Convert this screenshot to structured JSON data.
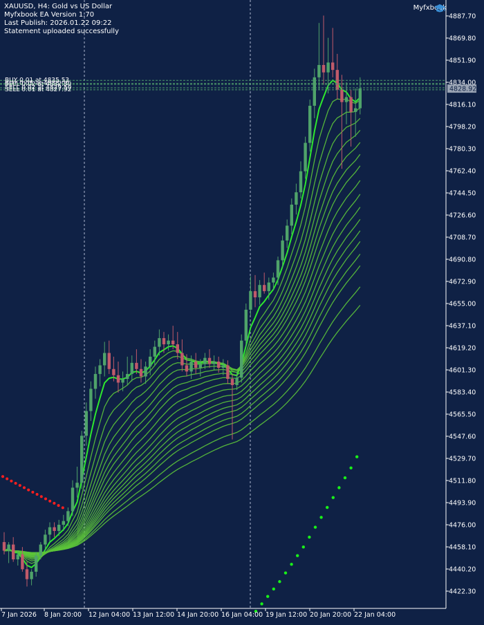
{
  "header": {
    "symbol_line": "XAUUSD, H4:  Gold vs US Dollar",
    "ea_line": "Myfxbook EA Version 1.70",
    "publish_line": "Last Publish: 2026.01.22 09:22",
    "status_line": "Statement uploaded successfully"
  },
  "brand": {
    "name": "Myfxbook",
    "icon": "graduation-cap-icon"
  },
  "colors": {
    "background": "#0f2145",
    "bull_candle": "#4fa36a",
    "bear_candle": "#c05a6a",
    "ema_fast": "#2ee82e",
    "ema_ribbon": "#5cc43a",
    "psar_up": "#19f019",
    "psar_down": "#ff1f1f",
    "trade_lines": "#4d9a6a",
    "axis_text": "#ffffff"
  },
  "chart_data": {
    "type": "candlestick",
    "timeframe": "H4",
    "current_price": "4828.92",
    "ylim": [
      4404.3,
      4896.1
    ],
    "y_ticks": [
      "4887.70",
      "4869.80",
      "4851.90",
      "4834.00",
      "4816.10",
      "4798.20",
      "4780.30",
      "4762.40",
      "4744.50",
      "4726.60",
      "4708.70",
      "4690.80",
      "4672.90",
      "4655.00",
      "4637.10",
      "4619.20",
      "4601.30",
      "4583.40",
      "4565.50",
      "4547.60",
      "4529.70",
      "4511.80",
      "4493.90",
      "4476.00",
      "4458.10",
      "4440.20",
      "4422.30"
    ],
    "x_ticks": [
      "7 Jan 2026",
      "8 Jan 20:00",
      "12 Jan 04:00",
      "13 Jan 12:00",
      "14 Jan 20:00",
      "16 Jan 04:00",
      "19 Jan 12:00",
      "20 Jan 20:00",
      "22 Jan 04:00"
    ],
    "period_separators": [
      "8 Jan 20:00",
      "16 Jan 04:00"
    ],
    "trade_labels": [
      {
        "text": "BUY 0.01 at 4835.53",
        "price": 4835.53
      },
      {
        "text": "BUY 0.05 at 4833.00",
        "price": 4833.0
      },
      {
        "text": "SELL 0.02 at 4832.30",
        "price": 4832.3
      },
      {
        "text": "SELL 0.02 at 4829.50",
        "price": 4829.5
      },
      {
        "text": "SELL 0.01 at 4827.92",
        "price": 4827.92
      }
    ],
    "candles": [
      {
        "o": 4462,
        "h": 4470,
        "l": 4452,
        "c": 4455
      },
      {
        "o": 4455,
        "h": 4462,
        "l": 4445,
        "c": 4460
      },
      {
        "o": 4460,
        "h": 4466,
        "l": 4446,
        "c": 4448
      },
      {
        "o": 4448,
        "h": 4455,
        "l": 4443,
        "c": 4452
      },
      {
        "o": 4452,
        "h": 4458,
        "l": 4438,
        "c": 4440
      },
      {
        "o": 4440,
        "h": 4446,
        "l": 4426,
        "c": 4432
      },
      {
        "o": 4432,
        "h": 4440,
        "l": 4427,
        "c": 4438
      },
      {
        "o": 4438,
        "h": 4454,
        "l": 4434,
        "c": 4451
      },
      {
        "o": 4451,
        "h": 4462,
        "l": 4448,
        "c": 4460
      },
      {
        "o": 4460,
        "h": 4472,
        "l": 4455,
        "c": 4468
      },
      {
        "o": 4468,
        "h": 4478,
        "l": 4462,
        "c": 4474
      },
      {
        "o": 4474,
        "h": 4478,
        "l": 4466,
        "c": 4471
      },
      {
        "o": 4471,
        "h": 4480,
        "l": 4467,
        "c": 4476
      },
      {
        "o": 4476,
        "h": 4484,
        "l": 4471,
        "c": 4479
      },
      {
        "o": 4479,
        "h": 4490,
        "l": 4475,
        "c": 4487
      },
      {
        "o": 4487,
        "h": 4512,
        "l": 4483,
        "c": 4506
      },
      {
        "o": 4506,
        "h": 4523,
        "l": 4498,
        "c": 4510
      },
      {
        "o": 4510,
        "h": 4552,
        "l": 4505,
        "c": 4548
      },
      {
        "o": 4548,
        "h": 4575,
        "l": 4540,
        "c": 4568
      },
      {
        "o": 4568,
        "h": 4592,
        "l": 4560,
        "c": 4586
      },
      {
        "o": 4586,
        "h": 4604,
        "l": 4578,
        "c": 4598
      },
      {
        "o": 4598,
        "h": 4610,
        "l": 4588,
        "c": 4605
      },
      {
        "o": 4605,
        "h": 4624,
        "l": 4596,
        "c": 4615
      },
      {
        "o": 4615,
        "h": 4625,
        "l": 4598,
        "c": 4602
      },
      {
        "o": 4602,
        "h": 4612,
        "l": 4592,
        "c": 4597
      },
      {
        "o": 4597,
        "h": 4608,
        "l": 4583,
        "c": 4591
      },
      {
        "o": 4591,
        "h": 4600,
        "l": 4584,
        "c": 4594
      },
      {
        "o": 4594,
        "h": 4612,
        "l": 4589,
        "c": 4598
      },
      {
        "o": 4598,
        "h": 4613,
        "l": 4592,
        "c": 4607
      },
      {
        "o": 4607,
        "h": 4618,
        "l": 4598,
        "c": 4602
      },
      {
        "o": 4602,
        "h": 4610,
        "l": 4591,
        "c": 4596
      },
      {
        "o": 4596,
        "h": 4608,
        "l": 4590,
        "c": 4604
      },
      {
        "o": 4604,
        "h": 4618,
        "l": 4597,
        "c": 4612
      },
      {
        "o": 4612,
        "h": 4625,
        "l": 4605,
        "c": 4620
      },
      {
        "o": 4620,
        "h": 4634,
        "l": 4613,
        "c": 4627
      },
      {
        "o": 4627,
        "h": 4632,
        "l": 4615,
        "c": 4622
      },
      {
        "o": 4622,
        "h": 4630,
        "l": 4617,
        "c": 4625
      },
      {
        "o": 4625,
        "h": 4637,
        "l": 4618,
        "c": 4622
      },
      {
        "o": 4622,
        "h": 4632,
        "l": 4610,
        "c": 4615
      },
      {
        "o": 4615,
        "h": 4626,
        "l": 4600,
        "c": 4605
      },
      {
        "o": 4605,
        "h": 4614,
        "l": 4596,
        "c": 4600
      },
      {
        "o": 4600,
        "h": 4613,
        "l": 4594,
        "c": 4608
      },
      {
        "o": 4608,
        "h": 4615,
        "l": 4598,
        "c": 4603
      },
      {
        "o": 4603,
        "h": 4610,
        "l": 4596,
        "c": 4606
      },
      {
        "o": 4606,
        "h": 4615,
        "l": 4602,
        "c": 4611
      },
      {
        "o": 4611,
        "h": 4618,
        "l": 4603,
        "c": 4606
      },
      {
        "o": 4606,
        "h": 4613,
        "l": 4601,
        "c": 4608
      },
      {
        "o": 4608,
        "h": 4612,
        "l": 4599,
        "c": 4603
      },
      {
        "o": 4603,
        "h": 4610,
        "l": 4597,
        "c": 4605
      },
      {
        "o": 4605,
        "h": 4609,
        "l": 4590,
        "c": 4594
      },
      {
        "o": 4594,
        "h": 4598,
        "l": 4545,
        "c": 4589
      },
      {
        "o": 4589,
        "h": 4600,
        "l": 4585,
        "c": 4595
      },
      {
        "o": 4595,
        "h": 4630,
        "l": 4591,
        "c": 4625
      },
      {
        "o": 4625,
        "h": 4655,
        "l": 4620,
        "c": 4650
      },
      {
        "o": 4650,
        "h": 4677,
        "l": 4645,
        "c": 4665
      },
      {
        "o": 4665,
        "h": 4678,
        "l": 4652,
        "c": 4660
      },
      {
        "o": 4660,
        "h": 4674,
        "l": 4654,
        "c": 4670
      },
      {
        "o": 4670,
        "h": 4680,
        "l": 4663,
        "c": 4665
      },
      {
        "o": 4665,
        "h": 4676,
        "l": 4658,
        "c": 4672
      },
      {
        "o": 4672,
        "h": 4680,
        "l": 4666,
        "c": 4676
      },
      {
        "o": 4676,
        "h": 4693,
        "l": 4670,
        "c": 4690
      },
      {
        "o": 4690,
        "h": 4710,
        "l": 4684,
        "c": 4706
      },
      {
        "o": 4706,
        "h": 4723,
        "l": 4700,
        "c": 4718
      },
      {
        "o": 4718,
        "h": 4740,
        "l": 4711,
        "c": 4735
      },
      {
        "o": 4735,
        "h": 4752,
        "l": 4727,
        "c": 4745
      },
      {
        "o": 4745,
        "h": 4770,
        "l": 4740,
        "c": 4762
      },
      {
        "o": 4762,
        "h": 4790,
        "l": 4756,
        "c": 4785
      },
      {
        "o": 4785,
        "h": 4820,
        "l": 4778,
        "c": 4815
      },
      {
        "o": 4815,
        "h": 4845,
        "l": 4805,
        "c": 4838
      },
      {
        "o": 4838,
        "h": 4882,
        "l": 4828,
        "c": 4848
      },
      {
        "o": 4848,
        "h": 4888,
        "l": 4832,
        "c": 4842
      },
      {
        "o": 4842,
        "h": 4870,
        "l": 4825,
        "c": 4850
      },
      {
        "o": 4850,
        "h": 4878,
        "l": 4838,
        "c": 4844
      },
      {
        "o": 4844,
        "h": 4857,
        "l": 4820,
        "c": 4828
      },
      {
        "o": 4828,
        "h": 4840,
        "l": 4764,
        "c": 4818
      },
      {
        "o": 4818,
        "h": 4834,
        "l": 4800,
        "c": 4822
      },
      {
        "o": 4822,
        "h": 4828,
        "l": 4782,
        "c": 4810
      },
      {
        "o": 4810,
        "h": 4829,
        "l": 4790,
        "c": 4813
      },
      {
        "o": 4813,
        "h": 4838,
        "l": 4808,
        "c": 4829
      }
    ],
    "ema_periods": [
      5,
      8,
      11,
      14,
      17,
      20,
      23,
      26,
      30,
      34,
      38,
      42,
      46,
      50,
      55,
      60,
      70,
      80
    ],
    "psar": {
      "down_dots": [
        4515,
        4513.2,
        4511.4,
        4509.6,
        4507.8,
        4506,
        4504.2,
        4502.4,
        4500.6,
        4498.8,
        4497,
        4495.2,
        4493.4,
        4491.6,
        4489.8
      ],
      "up_dots": [
        4406,
        4412,
        4418,
        4424,
        4430,
        4437,
        4444,
        4451,
        4458,
        4466,
        4474,
        4482,
        4490,
        4498,
        4506,
        4514,
        4522,
        4531
      ]
    }
  }
}
